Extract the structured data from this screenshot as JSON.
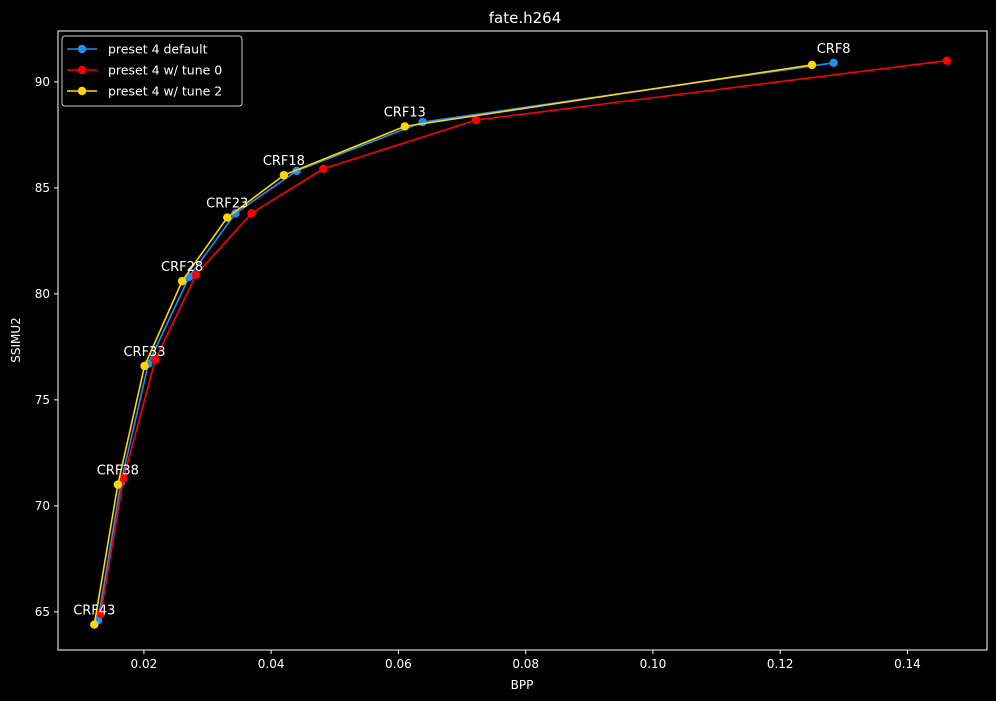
{
  "chart_data": {
    "type": "line",
    "title": "fate.h264",
    "xlabel": "BPP",
    "ylabel": "SSIMU2",
    "xlim": [
      0.0065,
      0.1525
    ],
    "ylim": [
      63.2,
      92.4
    ],
    "xticks": [
      0.02,
      0.04,
      0.06,
      0.08,
      0.1,
      0.12,
      0.14
    ],
    "xtick_labels": [
      "0.02",
      "0.04",
      "0.06",
      "0.08",
      "0.10",
      "0.12",
      "0.14"
    ],
    "yticks": [
      65,
      70,
      75,
      80,
      85,
      90
    ],
    "ytick_labels": [
      "65",
      "70",
      "75",
      "80",
      "85",
      "90"
    ],
    "grid": false,
    "legend_position": "top-left",
    "background": "#000000",
    "series": [
      {
        "name": "preset 4 default",
        "color": "#1f8ef1",
        "points": [
          {
            "x": 0.0128,
            "y": 64.6
          },
          {
            "x": 0.0164,
            "y": 71.1
          },
          {
            "x": 0.0207,
            "y": 76.7
          },
          {
            "x": 0.0271,
            "y": 80.8
          },
          {
            "x": 0.0344,
            "y": 83.8
          },
          {
            "x": 0.044,
            "y": 85.8
          },
          {
            "x": 0.0638,
            "y": 88.1
          },
          {
            "x": 0.1284,
            "y": 90.9
          }
        ]
      },
      {
        "name": "preset 4 w/ tune 0",
        "color": "#ff0000",
        "points": [
          {
            "x": 0.0132,
            "y": 64.9
          },
          {
            "x": 0.0168,
            "y": 71.3
          },
          {
            "x": 0.0218,
            "y": 76.9
          },
          {
            "x": 0.0282,
            "y": 80.9
          },
          {
            "x": 0.0369,
            "y": 83.8
          },
          {
            "x": 0.0482,
            "y": 85.9
          },
          {
            "x": 0.0722,
            "y": 88.2
          },
          {
            "x": 0.1462,
            "y": 91.0
          }
        ]
      },
      {
        "name": "preset 4 w/ tune 2",
        "color": "#ffd700",
        "points": [
          {
            "x": 0.0122,
            "y": 64.4
          },
          {
            "x": 0.0159,
            "y": 71.0
          },
          {
            "x": 0.0201,
            "y": 76.6
          },
          {
            "x": 0.026,
            "y": 80.6
          },
          {
            "x": 0.0331,
            "y": 83.6
          },
          {
            "x": 0.042,
            "y": 85.6
          },
          {
            "x": 0.061,
            "y": 87.9
          },
          {
            "x": 0.125,
            "y": 90.8
          }
        ]
      }
    ],
    "annotations": [
      {
        "text": "CRF43",
        "x": 0.0122,
        "y": 64.4
      },
      {
        "text": "CRF38",
        "x": 0.0159,
        "y": 71.0
      },
      {
        "text": "CRF33",
        "x": 0.0201,
        "y": 76.6
      },
      {
        "text": "CRF28",
        "x": 0.026,
        "y": 80.6
      },
      {
        "text": "CRF23",
        "x": 0.0331,
        "y": 83.6
      },
      {
        "text": "CRF18",
        "x": 0.042,
        "y": 85.6
      },
      {
        "text": "CRF13",
        "x": 0.061,
        "y": 87.9
      },
      {
        "text": "CRF8",
        "x": 0.1284,
        "y": 90.9
      }
    ]
  }
}
